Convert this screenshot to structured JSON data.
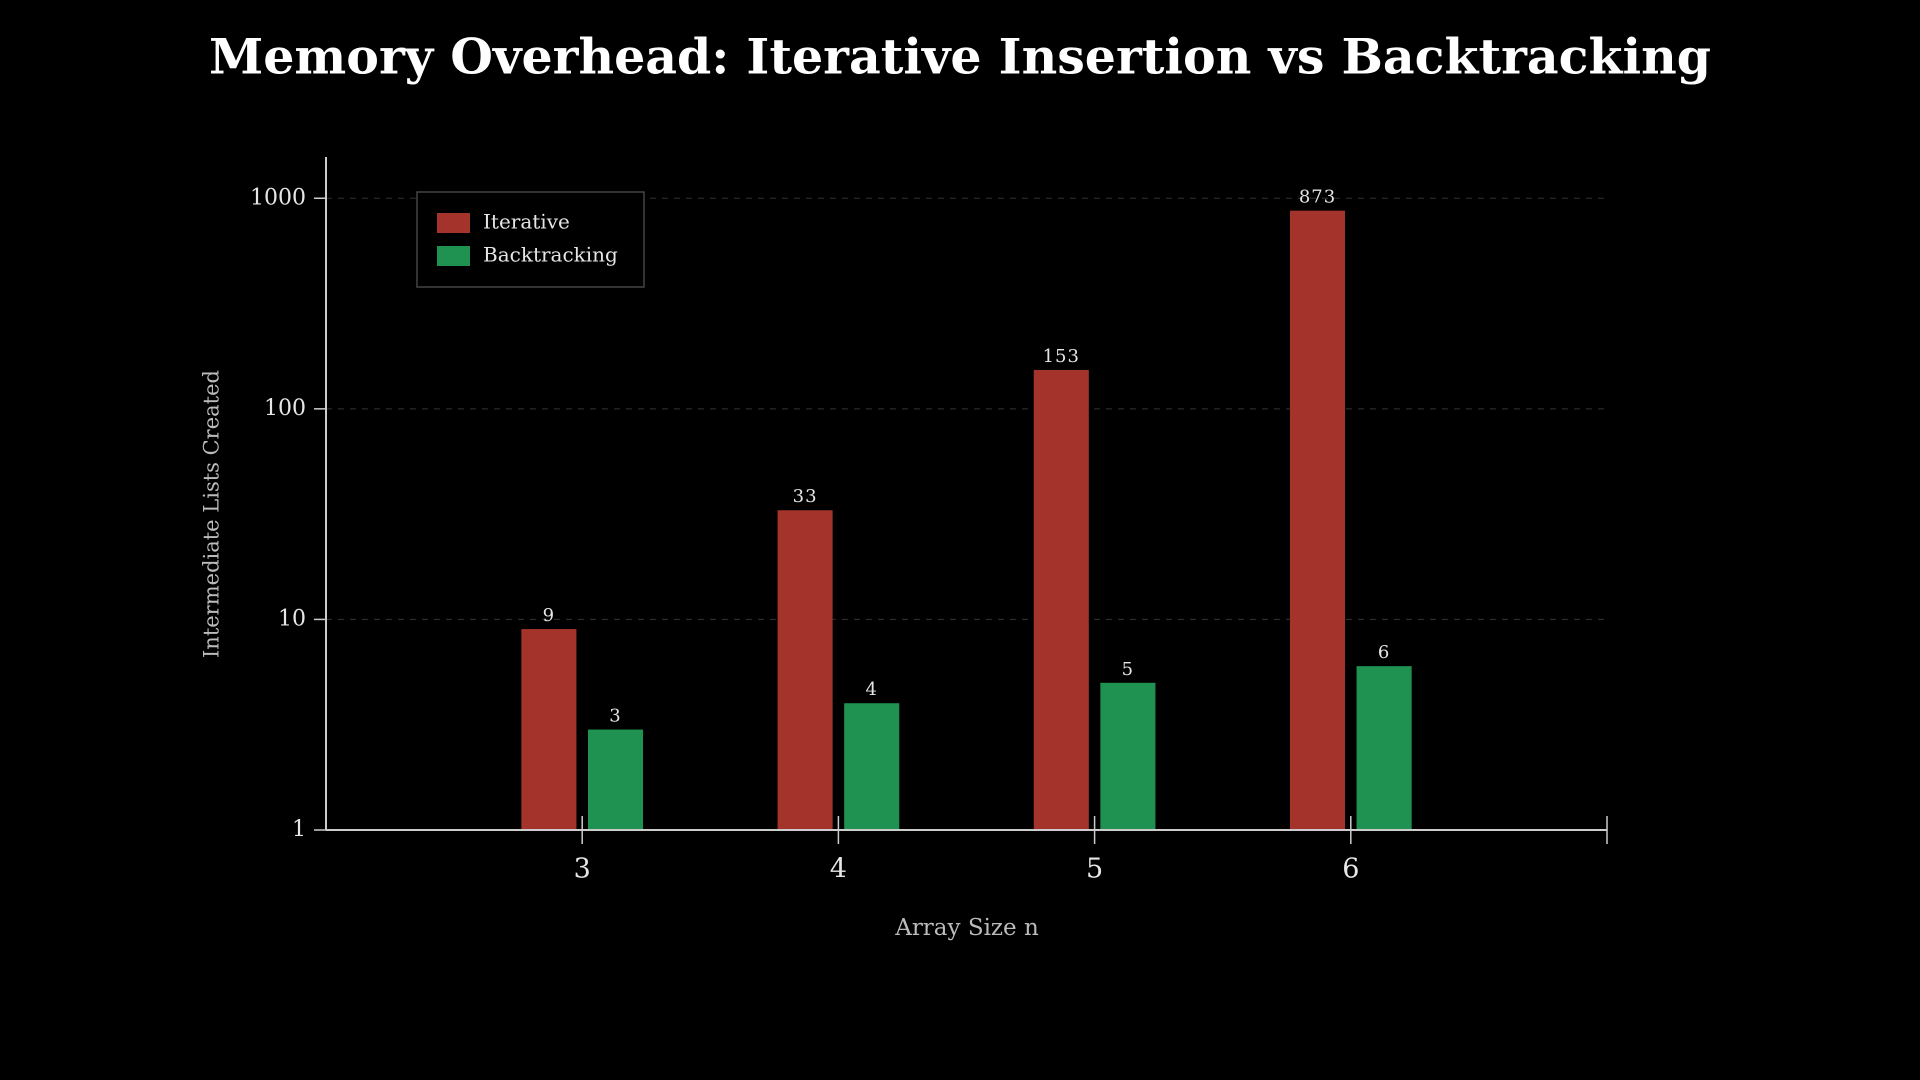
{
  "chart_data": {
    "type": "bar",
    "title": "Memory Overhead: Iterative Insertion vs Backtracking",
    "x_label": "Array Size n",
    "y_label": "Intermediate Lists Created",
    "x": [
      3,
      4,
      5,
      6
    ],
    "series": [
      {
        "name": "Iterative",
        "color": "#a3332b",
        "values": [
          9,
          33,
          153,
          873
        ]
      },
      {
        "name": "Backtracking",
        "color": "#1f9150",
        "values": [
          3,
          4,
          5,
          6
        ]
      }
    ],
    "xlim": [
      2,
      7
    ],
    "xticks": [
      3,
      4,
      5,
      6
    ],
    "ylim": [
      1,
      1570
    ],
    "yticks": [
      1,
      10,
      100,
      1000
    ],
    "yscale": "log",
    "grid": true,
    "legend": "upper left"
  }
}
